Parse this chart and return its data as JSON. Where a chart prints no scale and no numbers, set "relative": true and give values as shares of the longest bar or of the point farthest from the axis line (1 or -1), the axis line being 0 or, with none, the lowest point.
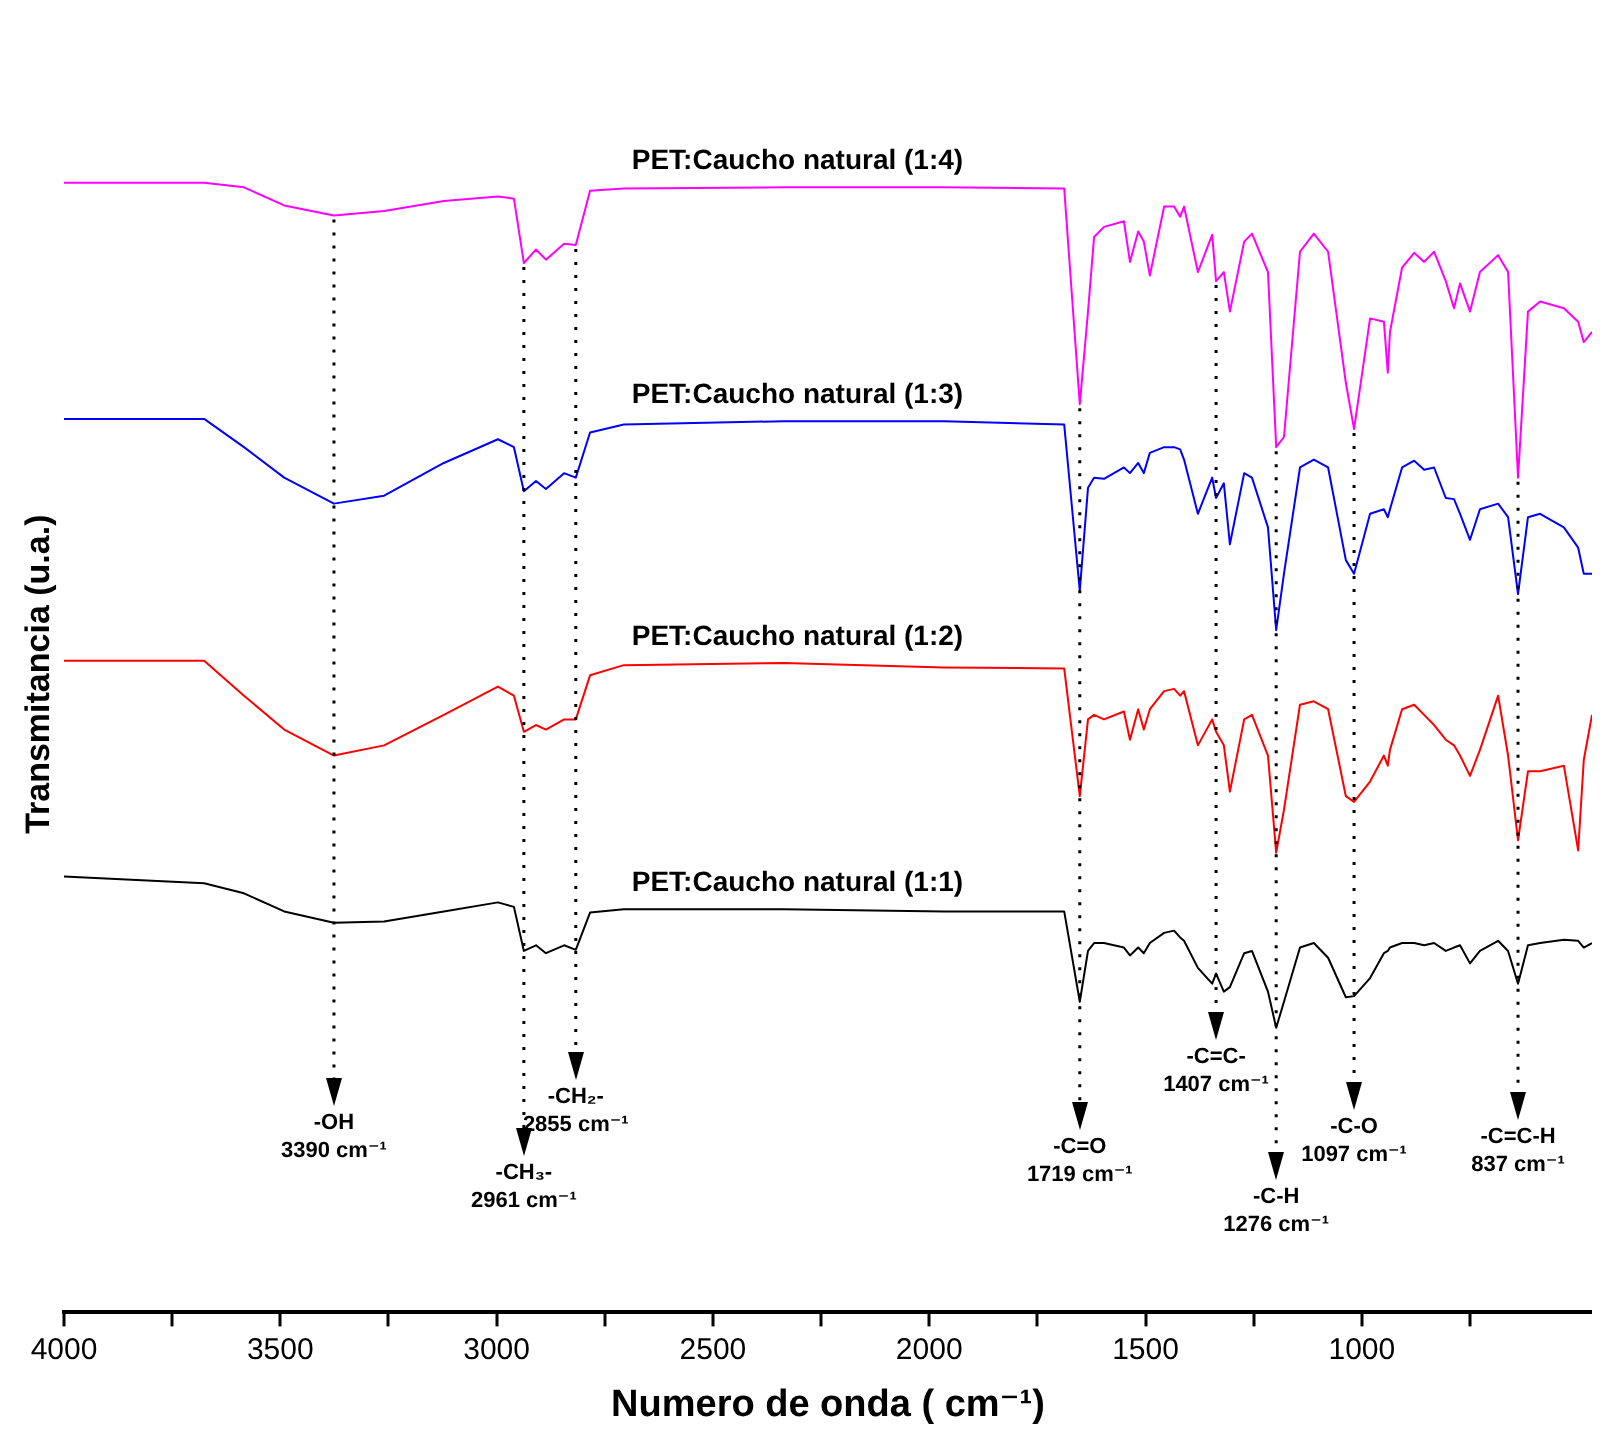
{
  "chart_data": {
    "type": "line",
    "relative": true,
    "xlabel": "Numero de onda ( cm⁻¹)",
    "ylabel": "Transmitancia (u.a.)",
    "xlim": [
      4000,
      468
    ],
    "xticks": [
      4000,
      {
        "value": 3750,
        "label": null
      },
      3500,
      {
        "value": 3250,
        "label": null
      },
      3000,
      {
        "value": 2750,
        "label": null
      },
      2500,
      {
        "value": 2250,
        "label": null
      },
      2000,
      {
        "value": 1750,
        "label": null
      },
      1500,
      {
        "value": 1250,
        "label": null
      },
      1000,
      {
        "value": 750,
        "label": null
      }
    ],
    "x": [
      4000,
      3676,
      3584,
      3491,
      3376,
      3260,
      3122,
      2997,
      2960,
      2937,
      2909,
      2886,
      2844,
      2817,
      2784,
      2706,
      2336,
      1966,
      1688,
      1652,
      1633,
      1619,
      1596,
      1550,
      1536,
      1517,
      1504,
      1490,
      1457,
      1434,
      1420,
      1411,
      1379,
      1346,
      1337,
      1319,
      1305,
      1272,
      1254,
      1217,
      1198,
      1180,
      1143,
      1111,
      1078,
      1037,
      1018,
      981,
      949,
      940,
      935,
      907,
      879,
      856,
      833,
      806,
      787,
      773,
      750,
      727,
      685,
      662,
      639,
      616,
      588,
      533,
      500,
      487,
      468
    ],
    "series": [
      {
        "name": "PET:Caucho natural (1:1)",
        "color": "#000000",
        "values": [
          0.386,
          0.38,
          0.371,
          0.355,
          0.345,
          0.346,
          0.355,
          0.363,
          0.359,
          0.32,
          0.325,
          0.318,
          0.325,
          0.321,
          0.354,
          0.357,
          0.357,
          0.355,
          0.355,
          0.275,
          0.32,
          0.327,
          0.327,
          0.323,
          0.316,
          0.323,
          0.318,
          0.327,
          0.336,
          0.338,
          0.332,
          0.329,
          0.305,
          0.291,
          0.3,
          0.284,
          0.288,
          0.318,
          0.32,
          0.284,
          0.252,
          0.275,
          0.323,
          0.327,
          0.314,
          0.279,
          0.28,
          0.296,
          0.318,
          0.32,
          0.323,
          0.327,
          0.327,
          0.325,
          0.327,
          0.32,
          0.323,
          0.325,
          0.309,
          0.32,
          0.329,
          0.32,
          0.291,
          0.325,
          0.327,
          0.33,
          0.329,
          0.323,
          0.327
        ]
      },
      {
        "name": "PET:Caucho natural (1:2)",
        "color": "#ff0000",
        "values": [
          0.577,
          0.577,
          0.546,
          0.516,
          0.493,
          0.502,
          0.529,
          0.554,
          0.546,
          0.514,
          0.52,
          0.516,
          0.525,
          0.525,
          0.564,
          0.573,
          0.575,
          0.571,
          0.57,
          0.457,
          0.525,
          0.529,
          0.525,
          0.532,
          0.507,
          0.534,
          0.516,
          0.534,
          0.55,
          0.552,
          0.546,
          0.55,
          0.502,
          0.525,
          0.514,
          0.502,
          0.461,
          0.525,
          0.529,
          0.493,
          0.407,
          0.445,
          0.538,
          0.541,
          0.534,
          0.457,
          0.452,
          0.47,
          0.493,
          0.484,
          0.498,
          0.534,
          0.538,
          0.529,
          0.52,
          0.507,
          0.502,
          0.493,
          0.475,
          0.498,
          0.546,
          0.493,
          0.418,
          0.479,
          0.479,
          0.484,
          0.409,
          0.489,
          0.529
        ]
      },
      {
        "name": "PET:Caucho natural (1:3)",
        "color": "#0000ff",
        "values": [
          0.791,
          0.791,
          0.766,
          0.739,
          0.716,
          0.723,
          0.752,
          0.773,
          0.766,
          0.727,
          0.736,
          0.729,
          0.743,
          0.739,
          0.779,
          0.786,
          0.789,
          0.789,
          0.786,
          0.639,
          0.73,
          0.739,
          0.738,
          0.748,
          0.743,
          0.752,
          0.743,
          0.761,
          0.766,
          0.766,
          0.764,
          0.755,
          0.707,
          0.739,
          0.721,
          0.734,
          0.68,
          0.743,
          0.739,
          0.695,
          0.604,
          0.654,
          0.748,
          0.755,
          0.748,
          0.666,
          0.654,
          0.707,
          0.711,
          0.704,
          0.711,
          0.748,
          0.754,
          0.746,
          0.748,
          0.721,
          0.72,
          0.707,
          0.684,
          0.711,
          0.716,
          0.704,
          0.636,
          0.704,
          0.707,
          0.695,
          0.677,
          0.654,
          0.654
        ]
      },
      {
        "name": "PET:Caucho natural (1:4)",
        "color": "#ff00ff",
        "values": [
          1.0,
          1.0,
          0.996,
          0.98,
          0.971,
          0.975,
          0.984,
          0.988,
          0.986,
          0.929,
          0.941,
          0.932,
          0.946,
          0.945,
          0.993,
          0.995,
          0.996,
          0.996,
          0.995,
          0.804,
          0.886,
          0.952,
          0.961,
          0.966,
          0.93,
          0.957,
          0.948,
          0.918,
          0.979,
          0.979,
          0.97,
          0.979,
          0.921,
          0.954,
          0.913,
          0.921,
          0.886,
          0.948,
          0.955,
          0.921,
          0.766,
          0.775,
          0.939,
          0.955,
          0.939,
          0.823,
          0.782,
          0.88,
          0.877,
          0.832,
          0.868,
          0.925,
          0.938,
          0.93,
          0.939,
          0.913,
          0.889,
          0.911,
          0.886,
          0.921,
          0.936,
          0.921,
          0.739,
          0.886,
          0.895,
          0.889,
          0.877,
          0.859,
          0.868
        ]
      }
    ],
    "ref_lines": [
      {
        "axis": "x",
        "value": 3376,
        "label": "-OH\n3390 cm⁻¹",
        "line_style": "dotted",
        "color": "#000000"
      },
      {
        "axis": "x",
        "value": 2937,
        "label": "-CH₃-\n2961 cm⁻¹",
        "line_style": "dotted",
        "color": "#000000"
      },
      {
        "axis": "x",
        "value": 2817,
        "label": "-CH₂-\n2855 cm⁻¹",
        "line_style": "dotted",
        "color": "#000000"
      },
      {
        "axis": "x",
        "value": 1652,
        "label": "-C=O\n1719 cm⁻¹",
        "line_style": "dotted",
        "color": "#000000"
      },
      {
        "axis": "x",
        "value": 1337,
        "label": "-C=C-\n1407 cm⁻¹",
        "line_style": "dotted",
        "color": "#000000"
      },
      {
        "axis": "x",
        "value": 1198,
        "label": "-C-H\n1276 cm⁻¹",
        "line_style": "dotted",
        "color": "#000000"
      },
      {
        "axis": "x",
        "value": 1018,
        "label": "-C-O\n1097 cm⁻¹",
        "line_style": "dotted",
        "color": "#000000"
      },
      {
        "axis": "x",
        "value": 639,
        "label": "-C=C-H\n837 cm⁻¹",
        "line_style": "dotted",
        "color": "#000000"
      }
    ]
  }
}
